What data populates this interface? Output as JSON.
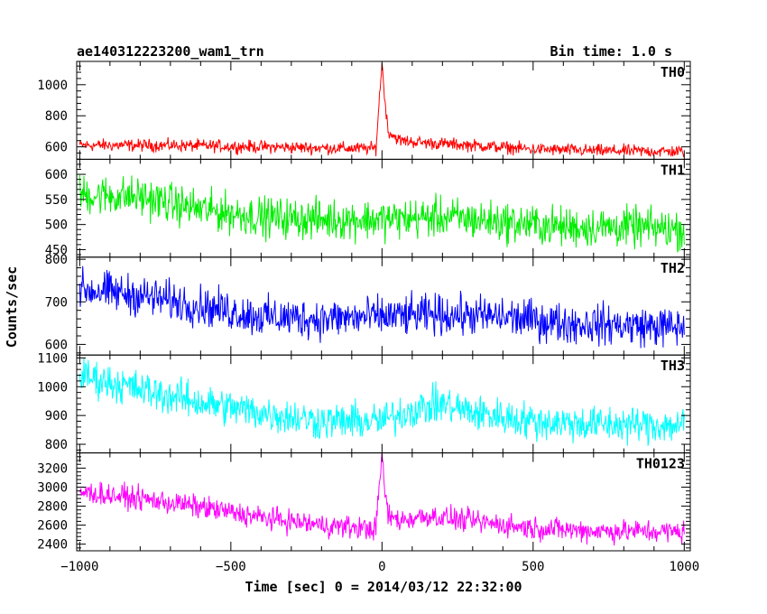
{
  "chart_data": {
    "type": "line",
    "title": "ae140312223200_wam1_trn",
    "bin_time": "Bin time: 1.0 s",
    "xlabel": "Time [sec] 0 = 2014/03/12 22:32:00",
    "ylabel": "Counts/sec",
    "xlim": [
      -1010,
      1020
    ],
    "x_ticks": [
      -1000,
      -500,
      0,
      500,
      1000
    ],
    "x_tick_labels": [
      "−1000",
      "−500",
      "0",
      "500",
      "1000"
    ],
    "grid": false,
    "panels": [
      {
        "name": "TH0",
        "color": "#ff0000",
        "ylim": [
          520,
          1150
        ],
        "y_ticks": [
          600,
          800,
          1000
        ],
        "y_tick_labels": [
          "600",
          "800",
          "1000"
        ],
        "trend": [
          [
            -1000,
            610
          ],
          [
            -700,
            610
          ],
          [
            -400,
            600
          ],
          [
            -100,
            590
          ],
          [
            -20,
            590
          ],
          [
            0,
            1150
          ],
          [
            5,
            1000
          ],
          [
            20,
            700
          ],
          [
            60,
            640
          ],
          [
            150,
            625
          ],
          [
            300,
            610
          ],
          [
            500,
            585
          ],
          [
            700,
            575
          ],
          [
            1000,
            570
          ]
        ],
        "noise": 28
      },
      {
        "name": "TH1",
        "color": "#00ee00",
        "ylim": [
          435,
          630
        ],
        "y_ticks": [
          450,
          500,
          550,
          600
        ],
        "y_tick_labels": [
          "450",
          "500",
          "550",
          "600"
        ],
        "trend": [
          [
            -1000,
            560
          ],
          [
            -800,
            555
          ],
          [
            -600,
            530
          ],
          [
            -400,
            515
          ],
          [
            -200,
            510
          ],
          [
            0,
            510
          ],
          [
            200,
            515
          ],
          [
            400,
            505
          ],
          [
            600,
            495
          ],
          [
            800,
            495
          ],
          [
            1000,
            490
          ]
        ],
        "noise": 28
      },
      {
        "name": "TH2",
        "color": "#0000ff",
        "ylim": [
          575,
          805
        ],
        "y_ticks": [
          600,
          700,
          800
        ],
        "y_tick_labels": [
          "600",
          "700",
          "800"
        ],
        "trend": [
          [
            -1000,
            730
          ],
          [
            -800,
            715
          ],
          [
            -600,
            690
          ],
          [
            -400,
            665
          ],
          [
            -200,
            660
          ],
          [
            0,
            665
          ],
          [
            200,
            670
          ],
          [
            400,
            665
          ],
          [
            600,
            650
          ],
          [
            800,
            645
          ],
          [
            1000,
            640
          ]
        ],
        "noise": 33
      },
      {
        "name": "TH3",
        "color": "#00ffff",
        "ylim": [
          770,
          1110
        ],
        "y_ticks": [
          800,
          900,
          1000,
          1100
        ],
        "y_tick_labels": [
          "800",
          "900",
          "1000",
          "1100"
        ],
        "trend": [
          [
            -1000,
            1040
          ],
          [
            -800,
            990
          ],
          [
            -600,
            945
          ],
          [
            -400,
            910
          ],
          [
            -200,
            880
          ],
          [
            0,
            880
          ],
          [
            100,
            920
          ],
          [
            200,
            940
          ],
          [
            300,
            910
          ],
          [
            500,
            880
          ],
          [
            700,
            870
          ],
          [
            1000,
            865
          ]
        ],
        "noise": 45
      },
      {
        "name": "TH0123",
        "color": "#ff00ff",
        "ylim": [
          2330,
          3360
        ],
        "y_ticks": [
          2400,
          2600,
          2800,
          3000,
          3200
        ],
        "y_tick_labels": [
          "2400",
          "2600",
          "2800",
          "3000",
          "3200"
        ],
        "trend": [
          [
            -1000,
            2950
          ],
          [
            -800,
            2880
          ],
          [
            -600,
            2790
          ],
          [
            -400,
            2680
          ],
          [
            -200,
            2600
          ],
          [
            -20,
            2560
          ],
          [
            0,
            3360
          ],
          [
            5,
            3100
          ],
          [
            20,
            2700
          ],
          [
            60,
            2650
          ],
          [
            150,
            2700
          ],
          [
            300,
            2640
          ],
          [
            500,
            2570
          ],
          [
            700,
            2540
          ],
          [
            1000,
            2530
          ]
        ],
        "noise": 85
      }
    ]
  }
}
